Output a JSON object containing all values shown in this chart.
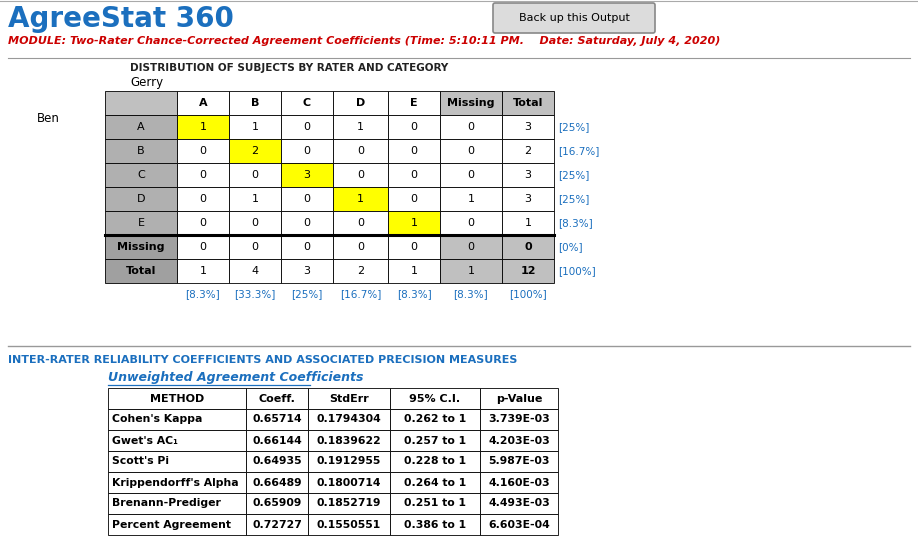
{
  "title": "AgreeStat 360",
  "module_text": "MODULE: Two-Rater Chance-Corrected Agreement Coefficients (Time: 5:10:11 PM.    Date: Saturday, July 4, 2020)",
  "button_text": "Back up this Output",
  "dist_title": "DISTRIBUTION OF SUBJECTS BY RATER AND CATEGORY",
  "rater1_name": "Gerry",
  "rater2_name": "Ben",
  "col_headers": [
    "",
    "A",
    "B",
    "C",
    "D",
    "E",
    "Missing",
    "Total"
  ],
  "row_headers": [
    "A",
    "B",
    "C",
    "D",
    "E",
    "Missing",
    "Total"
  ],
  "matrix": [
    [
      1,
      1,
      0,
      1,
      0,
      0,
      3
    ],
    [
      0,
      2,
      0,
      0,
      0,
      0,
      2
    ],
    [
      0,
      0,
      3,
      0,
      0,
      0,
      3
    ],
    [
      0,
      1,
      0,
      1,
      0,
      1,
      3
    ],
    [
      0,
      0,
      0,
      0,
      1,
      0,
      1
    ],
    [
      0,
      0,
      0,
      0,
      0,
      0,
      0
    ],
    [
      1,
      4,
      3,
      2,
      1,
      1,
      12
    ]
  ],
  "row_pct": [
    "[25%]",
    "[16.7%]",
    "[25%]",
    "[25%]",
    "[8.3%]",
    "[0%]",
    "[100%]"
  ],
  "col_pct": [
    "[8.3%]",
    "[33.3%]",
    "[25%]",
    "[16.7%]",
    "[8.3%]",
    "[8.3%]",
    "[100%]"
  ],
  "section2_title": "INTER-RATER RELIABILITY COEFFICIENTS AND ASSOCIATED PRECISION MEASURES",
  "section2_subtitle": "Unweighted Agreement Coefficients",
  "coeff_headers": [
    "METHOD",
    "Coeff.",
    "StdErr",
    "95% C.I.",
    "p-Value"
  ],
  "coeff_data": [
    [
      "Cohen's Kappa",
      "0.65714",
      "0.1794304",
      "0.262 to 1",
      "3.739E-03"
    ],
    [
      "Gwet's AC₁",
      "0.66144",
      "0.1839622",
      "0.257 to 1",
      "4.203E-03"
    ],
    [
      "Scott's Pi",
      "0.64935",
      "0.1912955",
      "0.228 to 1",
      "5.987E-03"
    ],
    [
      "Krippendorff's Alpha",
      "0.66489",
      "0.1800714",
      "0.264 to 1",
      "4.160E-03"
    ],
    [
      "Brenann-Prediger",
      "0.65909",
      "0.1852719",
      "0.251 to 1",
      "4.493E-03"
    ],
    [
      "Percent Agreement",
      "0.72727",
      "0.1550551",
      "0.386 to 1",
      "6.603E-04"
    ]
  ],
  "colors": {
    "title_blue": "#1B6FBE",
    "module_red": "#CC0000",
    "section_blue": "#1B6FBE",
    "header_gray": "#C0C0C0",
    "row_gray": "#B0B0B0",
    "diagonal_yellow": "#FFFF00",
    "missing_total_gray": "#A0A0A0",
    "white": "#FFFFFF",
    "black": "#000000",
    "coeff_blue": "#1B6FBE"
  }
}
